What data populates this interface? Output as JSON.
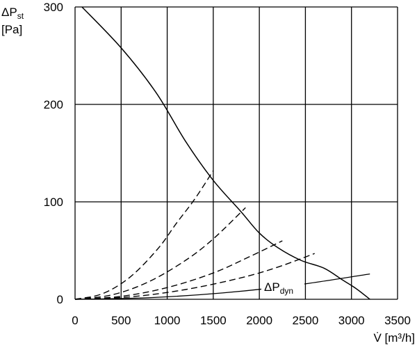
{
  "chart_data": {
    "type": "line",
    "title": "",
    "xlabel": "V̇ [m³/h]",
    "ylabel_main": "ΔP",
    "ylabel_sub": "st",
    "ylabel_unit": "[Pa]",
    "xlim": [
      0,
      3500
    ],
    "ylim": [
      0,
      300
    ],
    "x_ticks": [
      0,
      500,
      1000,
      1500,
      2000,
      2500,
      3000,
      3500
    ],
    "y_ticks": [
      0,
      100,
      200,
      300
    ],
    "grid": true,
    "series": [
      {
        "style": "solid",
        "x": [
          75,
          500,
          880,
          1200,
          1500,
          1800,
          2000,
          2200,
          2450,
          2700,
          2900,
          3050,
          3200
        ],
        "y": [
          300,
          258,
          212,
          162,
          122,
          90,
          68,
          53,
          40,
          32,
          20,
          11,
          0
        ]
      },
      {
        "style": "dashed",
        "x": [
          0,
          300,
          600,
          900,
          1100,
          1300,
          1500
        ],
        "y": [
          0,
          5.8,
          23,
          52,
          78,
          103,
          132
        ]
      },
      {
        "style": "dashed",
        "x": [
          0,
          400,
          800,
          1200,
          1500,
          1850
        ],
        "y": [
          0,
          4.5,
          18,
          40,
          62,
          94
        ]
      },
      {
        "style": "dashed",
        "x": [
          0,
          500,
          1000,
          1500,
          1900,
          2250
        ],
        "y": [
          0,
          3,
          12,
          27,
          44,
          60
        ]
      },
      {
        "style": "dashed",
        "x": [
          0,
          600,
          1200,
          1800,
          2200,
          2600
        ],
        "y": [
          0,
          2.5,
          10,
          22,
          33,
          47
        ]
      },
      {
        "name": "ΔP",
        "name_sub": "dyn",
        "style": "solid-thin",
        "x": [
          0,
          800,
          1600,
          2400,
          3200
        ],
        "y": [
          0,
          1.6,
          6.5,
          14.6,
          26
        ]
      }
    ]
  }
}
